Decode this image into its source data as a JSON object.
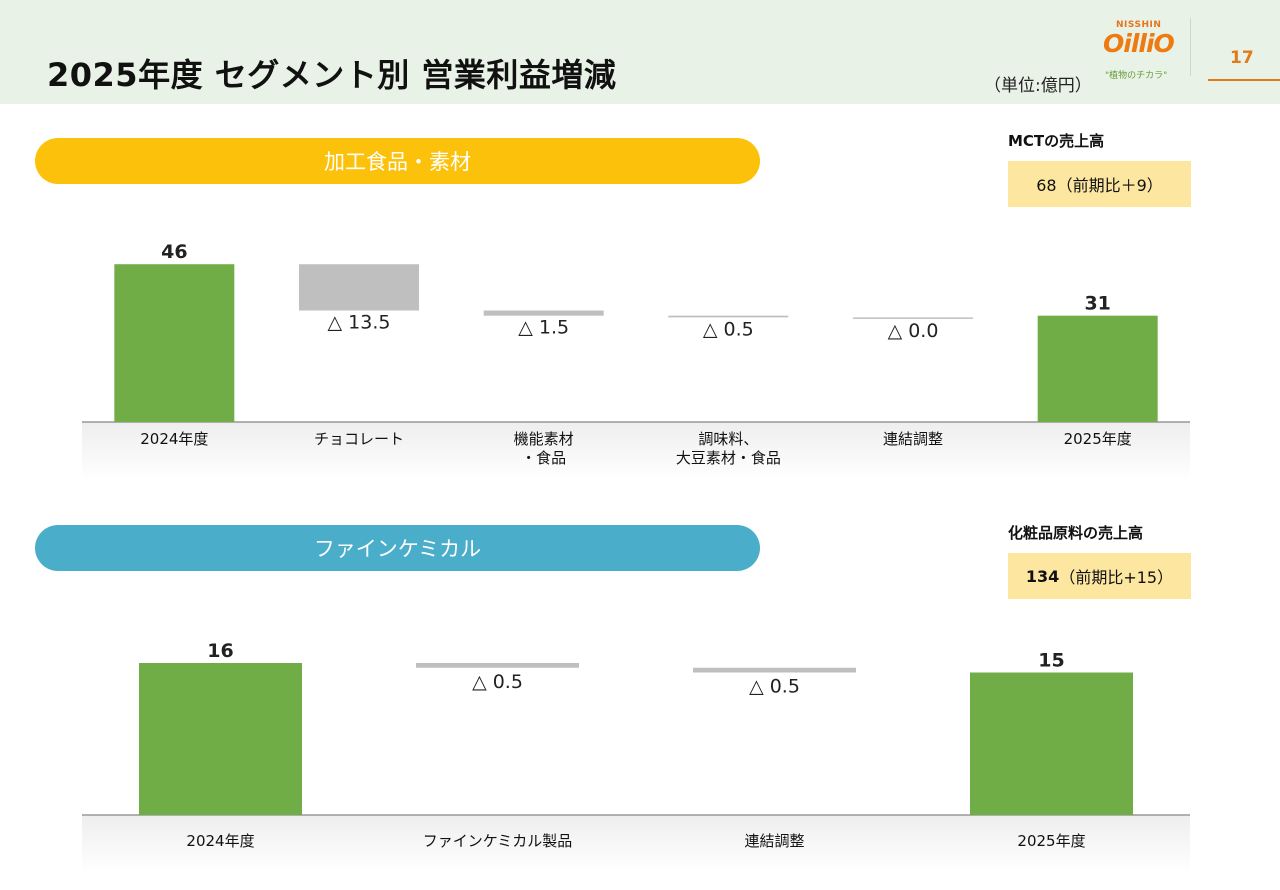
{
  "header": {
    "title": "2025年度 セグメント別 営業利益増減",
    "unit": "（単位:億円）",
    "page_number": "17",
    "logo": {
      "brand_top": "NISSHIN",
      "brand_main": "OilliO",
      "tagline": "\"植物のチカラ\""
    }
  },
  "sections": [
    {
      "name": "加工食品・素材",
      "side_label": "MCTの売上高",
      "side_value": "68（前期比＋9）"
    },
    {
      "name": "ファインケミカル",
      "side_label": "化粧品原料の売上高",
      "side_value_bold": "134",
      "side_value_rest": "（前期比+15）"
    }
  ],
  "colors": {
    "increase_bar": "#70ad47",
    "decrease_bar": "#bfbfbf",
    "food_pill": "#fcc10a",
    "chem_pill": "#4aadca",
    "side_box": "#fde7a0"
  },
  "chart_data": [
    {
      "type": "bar",
      "subtype": "waterfall",
      "title": "加工食品・素材",
      "categories": [
        [
          "2024年度"
        ],
        [
          "チョコレート"
        ],
        [
          "機能素材",
          "・食品"
        ],
        [
          "調味料、",
          "大豆素材・食品"
        ],
        [
          "連結調整"
        ],
        [
          "2025年度"
        ]
      ],
      "values": [
        46,
        -13.5,
        -1.5,
        -0.5,
        -0.0,
        31
      ],
      "kinds": [
        "total",
        "delta",
        "delta",
        "delta",
        "delta",
        "total"
      ],
      "labels": [
        "46",
        "△ 13.5",
        "△ 1.5",
        "△ 0.5",
        "△ 0.0",
        "31"
      ]
    },
    {
      "type": "bar",
      "subtype": "waterfall",
      "title": "ファインケミカル",
      "categories": [
        [
          "2024年度"
        ],
        [
          "ファインケミカル製品"
        ],
        [
          "連結調整"
        ],
        [
          "2025年度"
        ]
      ],
      "values": [
        16,
        -0.5,
        -0.5,
        15
      ],
      "kinds": [
        "total",
        "delta",
        "delta",
        "total"
      ],
      "labels": [
        "16",
        "△ 0.5",
        "△ 0.5",
        "15"
      ]
    }
  ]
}
